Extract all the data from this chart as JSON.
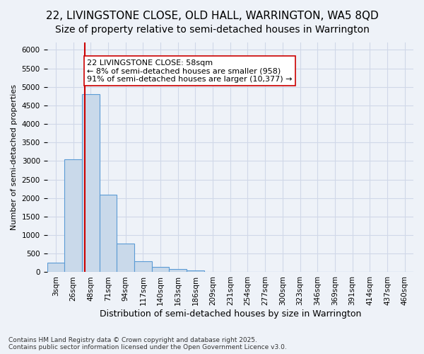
{
  "title1": "22, LIVINGSTONE CLOSE, OLD HALL, WARRINGTON, WA5 8QD",
  "title2": "Size of property relative to semi-detached houses in Warrington",
  "xlabel": "Distribution of semi-detached houses by size in Warrington",
  "ylabel": "Number of semi-detached properties",
  "footnote": "Contains HM Land Registry data © Crown copyright and database right 2025.\nContains public sector information licensed under the Open Government Licence v3.0.",
  "bin_labels": [
    "3sqm",
    "26sqm",
    "48sqm",
    "71sqm",
    "94sqm",
    "117sqm",
    "140sqm",
    "163sqm",
    "186sqm",
    "209sqm",
    "231sqm",
    "254sqm",
    "277sqm",
    "300sqm",
    "323sqm",
    "346sqm",
    "369sqm",
    "391sqm",
    "414sqm",
    "437sqm",
    "460sqm"
  ],
  "bar_values": [
    250,
    3050,
    4800,
    2100,
    780,
    290,
    150,
    90,
    50,
    10,
    5,
    3,
    2,
    1,
    0,
    0,
    0,
    0,
    0,
    0,
    0
  ],
  "bar_color": "#c9d9ea",
  "bar_edge_color": "#5b9bd5",
  "grid_color": "#d0d8e8",
  "background_color": "#eef2f8",
  "vline_x_index": 1.65,
  "vline_color": "#cc0000",
  "annotation_text": "22 LIVINGSTONE CLOSE: 58sqm\n← 8% of semi-detached houses are smaller (958)\n91% of semi-detached houses are larger (10,377) →",
  "annotation_box_color": "#ffffff",
  "annotation_box_edge": "#cc0000",
  "ylim": [
    0,
    6200
  ],
  "yticks": [
    0,
    500,
    1000,
    1500,
    2000,
    2500,
    3000,
    3500,
    4000,
    4500,
    5000,
    5500,
    6000
  ],
  "title1_fontsize": 11,
  "title2_fontsize": 10,
  "xlabel_fontsize": 9,
  "ylabel_fontsize": 8,
  "tick_fontsize": 7.5,
  "annotation_fontsize": 8
}
